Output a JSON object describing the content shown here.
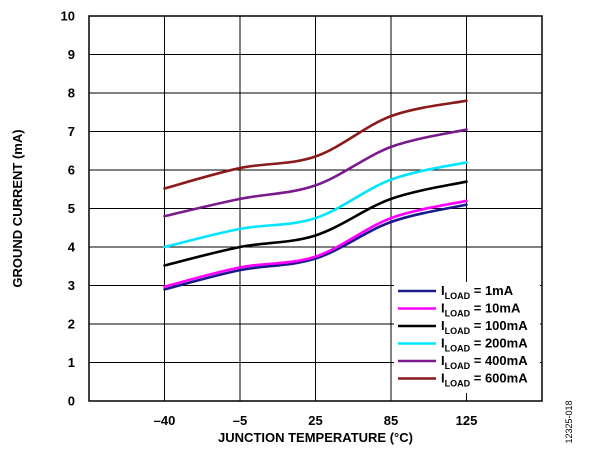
{
  "chart_data": {
    "type": "line",
    "title": "",
    "xlabel": "JUNCTION TEMPERATURE (°C)",
    "ylabel": "GROUND CURRENT (mA)",
    "x_tick_labels": [
      "–40",
      "–5",
      "25",
      "85",
      "125"
    ],
    "y_ticks": [
      0,
      1,
      2,
      3,
      4,
      5,
      6,
      7,
      8,
      9,
      10
    ],
    "ylim": [
      0,
      10
    ],
    "grid": true,
    "legend_position": "bottom-right",
    "series": [
      {
        "name_main": "I",
        "name_sub": "LOAD",
        "name_rest": " = 1mA",
        "color": "#1a1a8c",
        "x": [
          "–40",
          "–5",
          "25",
          "85",
          "125"
        ],
        "values": [
          2.9,
          3.4,
          3.7,
          4.65,
          5.1
        ]
      },
      {
        "name_main": "I",
        "name_sub": "LOAD",
        "name_rest": " = 10mA",
        "color": "#ff00ff",
        "x": [
          "–40",
          "–5",
          "25",
          "85",
          "125"
        ],
        "values": [
          2.97,
          3.47,
          3.75,
          4.75,
          5.2
        ]
      },
      {
        "name_main": "I",
        "name_sub": "LOAD",
        "name_rest": " = 100mA",
        "color": "#000000",
        "x": [
          "–40",
          "–5",
          "25",
          "85",
          "125"
        ],
        "values": [
          3.52,
          4.0,
          4.3,
          5.25,
          5.7
        ]
      },
      {
        "name_main": "I",
        "name_sub": "LOAD",
        "name_rest": " = 200mA",
        "color": "#00e5ff",
        "x": [
          "–40",
          "–5",
          "25",
          "85",
          "125"
        ],
        "values": [
          4.0,
          4.47,
          4.75,
          5.75,
          6.2
        ]
      },
      {
        "name_main": "I",
        "name_sub": "LOAD",
        "name_rest": " = 400mA",
        "color": "#7a1a8c",
        "x": [
          "–40",
          "–5",
          "25",
          "85",
          "125"
        ],
        "values": [
          4.8,
          5.25,
          5.6,
          6.6,
          7.05
        ]
      },
      {
        "name_main": "I",
        "name_sub": "LOAD",
        "name_rest": " = 600mA",
        "color": "#8b1a1a",
        "x": [
          "–40",
          "–5",
          "25",
          "85",
          "125"
        ],
        "values": [
          5.52,
          6.05,
          6.35,
          7.4,
          7.8
        ]
      }
    ]
  },
  "figure_id": "12325-018"
}
